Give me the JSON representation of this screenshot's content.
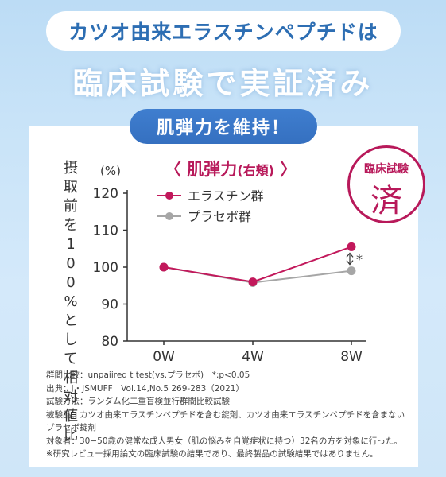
{
  "header": {
    "tagline": "カツオ由来エラスチンペプチドは",
    "headline": "臨床試験で実証済み",
    "badge": "肌弾力を維持！"
  },
  "seal": {
    "top": "臨床試験",
    "center": "済"
  },
  "chart_data": {
    "type": "line",
    "title": "〈 肌弾力",
    "title_sub": "(右頬)",
    "title_end": "〉",
    "ylabel": "摂取前を100%として相対値比",
    "yunit": "(%)",
    "categories": [
      "0W",
      "4W",
      "8W"
    ],
    "ylim": [
      80,
      120
    ],
    "yticks": [
      "80",
      "90",
      "100",
      "110",
      "120"
    ],
    "series": [
      {
        "name": "エラスチン群",
        "values": [
          100,
          96,
          105.5
        ],
        "color": "#c2185b"
      },
      {
        "name": "プラセボ群",
        "values": [
          100,
          95.8,
          99
        ],
        "color": "#a6a6a6"
      }
    ],
    "annotation": "*",
    "legend_position": "top-left",
    "grid": false
  },
  "notes": [
    "群間比較：unpaiired t test(vs.プラセボ)　*:p<0.05",
    "出典：J・JSMUFF　Vol.14,No.5 269-283（2021）",
    "試験方法：ランダム化二重盲検並行群間比較試験",
    "被験品：カツオ由来エラスチンペプチドを含む錠剤、カツオ由来エラスチンペプチドを含まない",
    "プラセボ錠剤",
    "対象者：30−50歳の健常な成人男女（肌の悩みを自覚症状に持つ）32名の方を対象に行った。",
    "※研究レビュー採用論文の臨床試験の結果であり、最終製品の試験結果ではありません。"
  ]
}
